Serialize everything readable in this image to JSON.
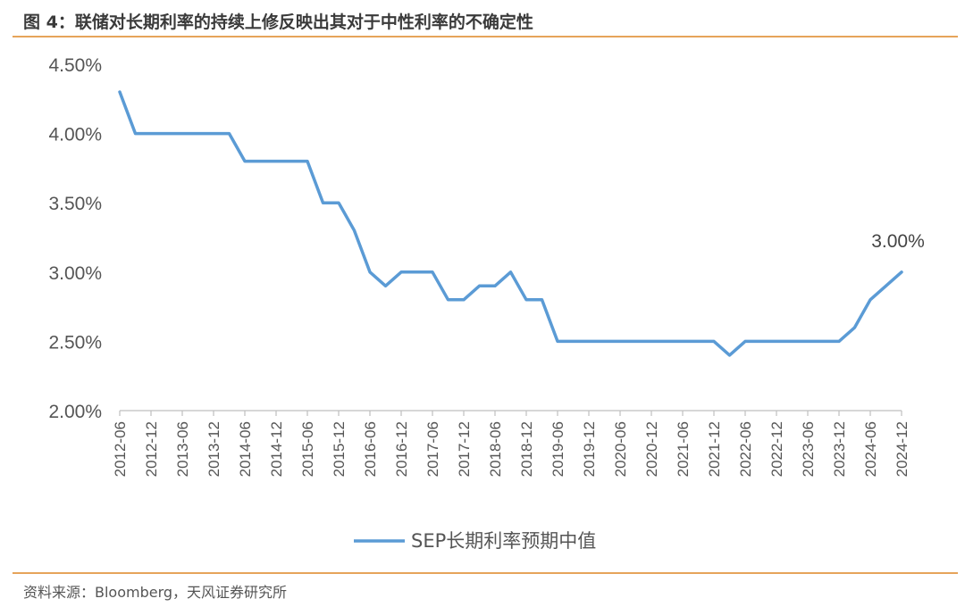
{
  "figure": {
    "title": "图 4：联储对长期利率的持续上修反映出其对于中性利率的不确定性",
    "source": "资料来源：Bloomberg，天风证券研究所"
  },
  "colors": {
    "line": "#5b9bd5",
    "rule": "#e6a45a",
    "axis": "#bfbfbf"
  },
  "chart_data": {
    "type": "line",
    "title": "",
    "xlabel": "",
    "ylabel": "",
    "ylim": [
      0.02,
      0.045
    ],
    "y_ticks": [
      "2.00%",
      "2.50%",
      "3.00%",
      "3.50%",
      "4.00%",
      "4.50%"
    ],
    "y_tick_values": [
      0.02,
      0.025,
      0.03,
      0.035,
      0.04,
      0.045
    ],
    "x_tick_labels": [
      "2012-06",
      "2012-12",
      "2013-06",
      "2013-12",
      "2014-06",
      "2014-12",
      "2015-06",
      "2015-12",
      "2016-06",
      "2016-12",
      "2017-06",
      "2017-12",
      "2018-06",
      "2018-12",
      "2019-06",
      "2019-12",
      "2020-06",
      "2020-12",
      "2021-06",
      "2021-12",
      "2022-06",
      "2022-12",
      "2023-06",
      "2023-12",
      "2024-06",
      "2024-12"
    ],
    "grid": false,
    "legend_position": "bottom",
    "series": [
      {
        "name": "SEP长期利率预期中值",
        "x": [
          "2012-06",
          "2012-09",
          "2012-12",
          "2013-03",
          "2013-06",
          "2013-09",
          "2013-12",
          "2014-03",
          "2014-06",
          "2014-09",
          "2014-12",
          "2015-03",
          "2015-06",
          "2015-09",
          "2015-12",
          "2016-03",
          "2016-06",
          "2016-09",
          "2016-12",
          "2017-03",
          "2017-06",
          "2017-09",
          "2017-12",
          "2018-03",
          "2018-06",
          "2018-09",
          "2018-12",
          "2019-03",
          "2019-06",
          "2019-09",
          "2019-12",
          "2020-03",
          "2020-06",
          "2020-09",
          "2020-12",
          "2021-03",
          "2021-06",
          "2021-09",
          "2021-12",
          "2022-03",
          "2022-06",
          "2022-09",
          "2022-12",
          "2023-03",
          "2023-06",
          "2023-09",
          "2023-12",
          "2024-03",
          "2024-06",
          "2024-09",
          "2024-12"
        ],
        "values": [
          0.043,
          0.04,
          0.04,
          0.04,
          0.04,
          0.04,
          0.04,
          0.04,
          0.038,
          0.038,
          0.038,
          0.038,
          0.038,
          0.035,
          0.035,
          0.033,
          0.03,
          0.029,
          0.03,
          0.03,
          0.03,
          0.028,
          0.028,
          0.029,
          0.029,
          0.03,
          0.028,
          0.028,
          0.025,
          0.025,
          0.025,
          0.025,
          0.025,
          0.025,
          0.025,
          0.025,
          0.025,
          0.025,
          0.025,
          0.024,
          0.025,
          0.025,
          0.025,
          0.025,
          0.025,
          0.025,
          0.025,
          0.026,
          0.028,
          0.029,
          0.03
        ]
      }
    ],
    "annotations": [
      {
        "text": "3.00%",
        "x": "2024-12",
        "y": 0.03
      }
    ]
  }
}
